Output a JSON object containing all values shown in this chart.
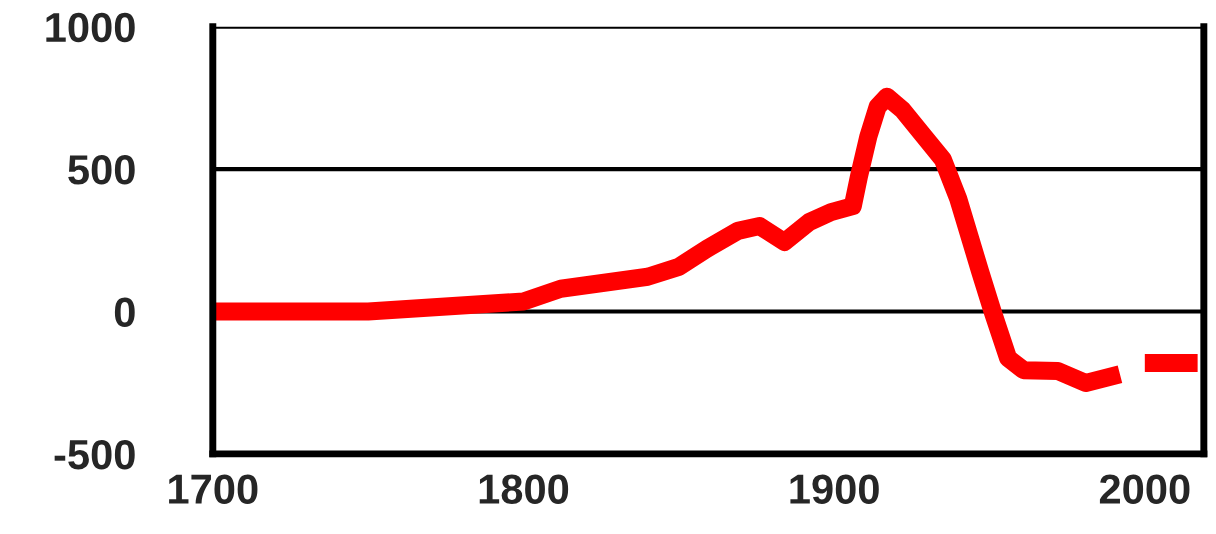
{
  "chart_data": {
    "type": "line",
    "x": [
      1700,
      1750,
      1800,
      1812,
      1840,
      1850,
      1859,
      1869,
      1876,
      1884,
      1892,
      1899,
      1906,
      1908,
      1911,
      1914,
      1917,
      1922,
      1929,
      1935,
      1940,
      1947,
      1951,
      1956,
      1961,
      1972,
      1981,
      1992,
      1996,
      2000,
      2017
    ],
    "series": [
      {
        "color": "#ff0000",
        "values": [
          0,
          0,
          35,
          80,
          122,
          157,
          220,
          283,
          300,
          244,
          314,
          349,
          370,
          475,
          614,
          719,
          754,
          708,
          614,
          534,
          394,
          140,
          0,
          -164,
          -206,
          -209,
          -251,
          -220,
          null,
          -181,
          -181
        ]
      }
    ],
    "xlim": [
      1700,
      2019
    ],
    "xticks": [
      1700,
      1800,
      1900,
      2000
    ],
    "ylim": [
      -500,
      1000
    ],
    "yticks": [
      -500,
      0,
      500,
      1000
    ],
    "grid": "y",
    "legend": false,
    "marker": "none",
    "line_style": "solid"
  }
}
